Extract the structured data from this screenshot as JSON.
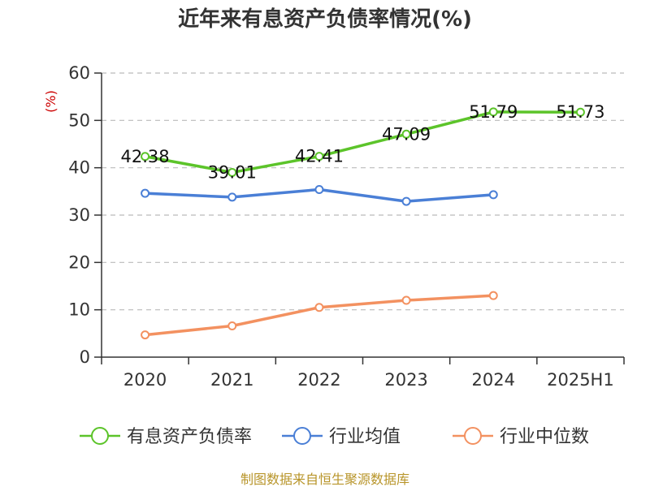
{
  "chart_data": {
    "type": "line",
    "title": "近年来有息资产负债率情况(%)",
    "ylabel": "(%)",
    "categories": [
      "2020",
      "2021",
      "2022",
      "2023",
      "2024",
      "2025H1"
    ],
    "ylim": [
      0,
      60
    ],
    "yticks": [
      0,
      10,
      20,
      30,
      40,
      50,
      60
    ],
    "grid": true,
    "legend_position": "bottom",
    "series": [
      {
        "name": "有息资产负债率",
        "color": "#5cc42a",
        "values": [
          42.38,
          39.01,
          42.41,
          47.09,
          51.79,
          51.73
        ],
        "data_labels": true
      },
      {
        "name": "行业均值",
        "color": "#4a7fd6",
        "values": [
          34.6,
          33.8,
          35.4,
          32.9,
          34.3,
          null
        ],
        "data_labels": false
      },
      {
        "name": "行业中位数",
        "color": "#f39160",
        "values": [
          4.7,
          6.6,
          10.5,
          12.0,
          13.0,
          null
        ],
        "data_labels": false
      }
    ]
  },
  "source": "制图数据来自恒生聚源数据库"
}
